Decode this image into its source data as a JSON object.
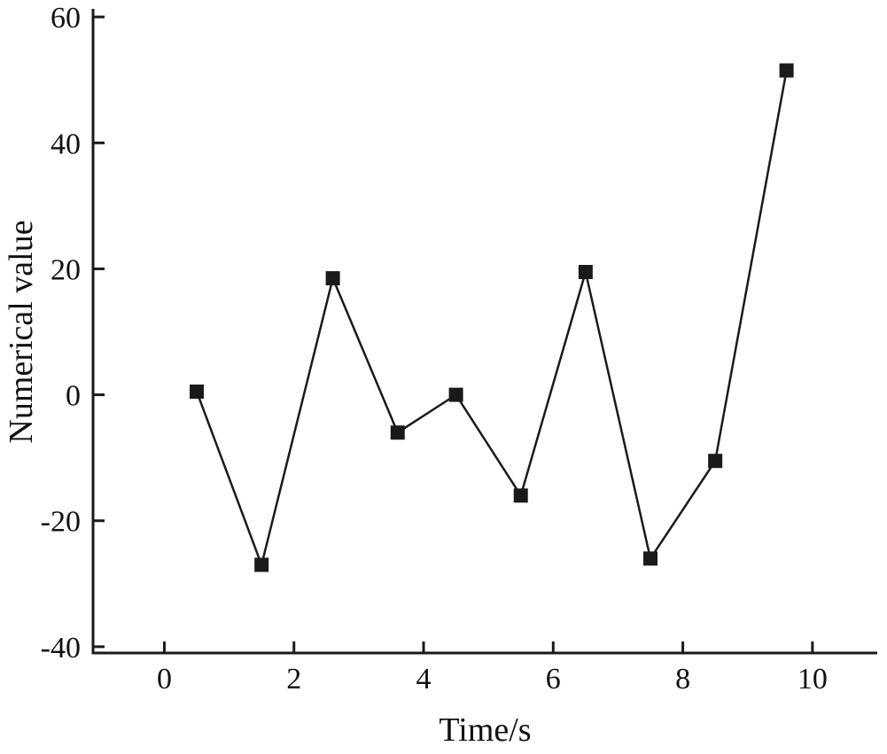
{
  "chart_data": {
    "type": "line",
    "title": "",
    "xlabel": "Time/s",
    "ylabel": "Numerical value",
    "x": [
      0.5,
      1.5,
      2.6,
      3.6,
      4.5,
      5.5,
      6.5,
      7.5,
      8.5,
      9.6
    ],
    "y": [
      0.5,
      -27,
      18.5,
      -6,
      0,
      -16,
      19.5,
      -26,
      -10.5,
      51.5
    ],
    "xlim": [
      -1.1,
      11
    ],
    "ylim": [
      -41,
      61
    ],
    "xticks": [
      0,
      2,
      4,
      6,
      8,
      10
    ],
    "yticks": [
      -40,
      -20,
      0,
      20,
      40,
      60
    ],
    "marker": "square",
    "marker_size": 16,
    "line_color": "#1a1a1a",
    "marker_color": "#1a1a1a",
    "background": "#ffffff",
    "grid": false,
    "legend": false
  }
}
